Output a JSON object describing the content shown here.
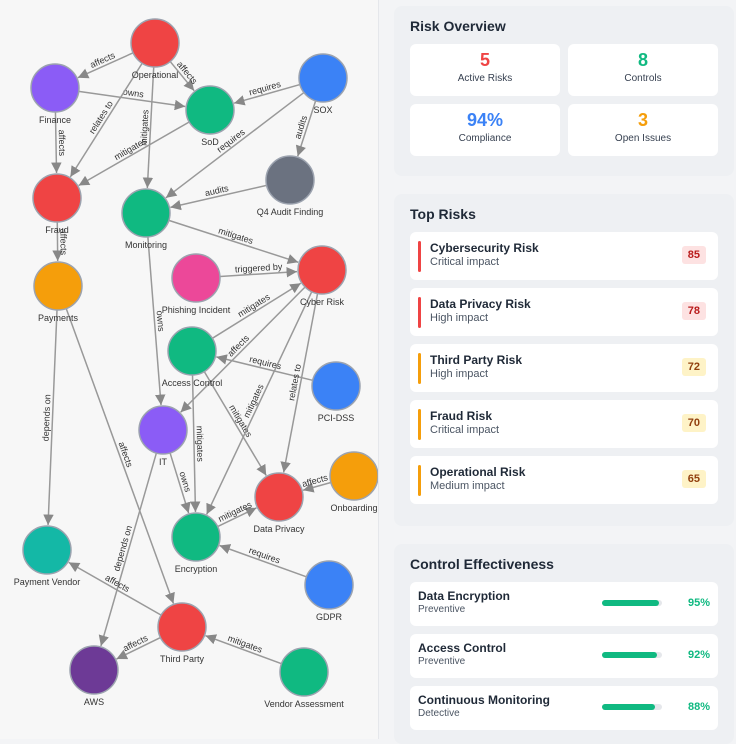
{
  "graph": {
    "nodes": [
      "Operational",
      "Finance",
      "SOX",
      "SoD",
      "Q4 Audit Finding",
      "Fraud",
      "Monitoring",
      "Cyber Risk",
      "Payments",
      "Phishing Incident",
      "Access Control",
      "PCI-DSS",
      "IT",
      "Onboarding",
      "Data Privacy",
      "Encryption",
      "Payment Vendor",
      "GDPR",
      "Third Party",
      "Vendor Assessment",
      "AWS"
    ],
    "edge_labels": [
      "affects",
      "owns",
      "affects",
      "affects",
      "relates to",
      "mitigates",
      "mitigates",
      "requires",
      "requires",
      "audits",
      "audits",
      "affects",
      "mitigates",
      "owns",
      "triggered by",
      "mitigates",
      "affects",
      "requires",
      "mitigates",
      "relates to",
      "mitigates",
      "depends on",
      "affects",
      "owns",
      "depends on",
      "affects",
      "mitigates",
      "requires",
      "affects",
      "affects",
      "mitigates",
      "mitigates"
    ]
  },
  "overview": {
    "title": "Risk Overview",
    "stats": [
      {
        "value": "5",
        "label": "Active Risks"
      },
      {
        "value": "8",
        "label": "Controls"
      },
      {
        "value": "94%",
        "label": "Compliance"
      },
      {
        "value": "3",
        "label": "Open Issues"
      }
    ]
  },
  "top_risks": {
    "title": "Top Risks",
    "items": [
      {
        "name": "Cybersecurity Risk",
        "impact": "Critical impact",
        "score": 85
      },
      {
        "name": "Data Privacy Risk",
        "impact": "High impact",
        "score": 78
      },
      {
        "name": "Third Party Risk",
        "impact": "High impact",
        "score": 72
      },
      {
        "name": "Fraud Risk",
        "impact": "Critical impact",
        "score": 70
      },
      {
        "name": "Operational Risk",
        "impact": "Medium impact",
        "score": 65
      }
    ]
  },
  "controls": {
    "title": "Control Effectiveness",
    "items": [
      {
        "name": "Data Encryption",
        "kind": "Preventive",
        "value": 95,
        "label": "95%"
      },
      {
        "name": "Access Control",
        "kind": "Preventive",
        "value": 92,
        "label": "92%"
      },
      {
        "name": "Continuous Monitoring",
        "kind": "Detective",
        "value": 88,
        "label": "88%"
      }
    ]
  }
}
